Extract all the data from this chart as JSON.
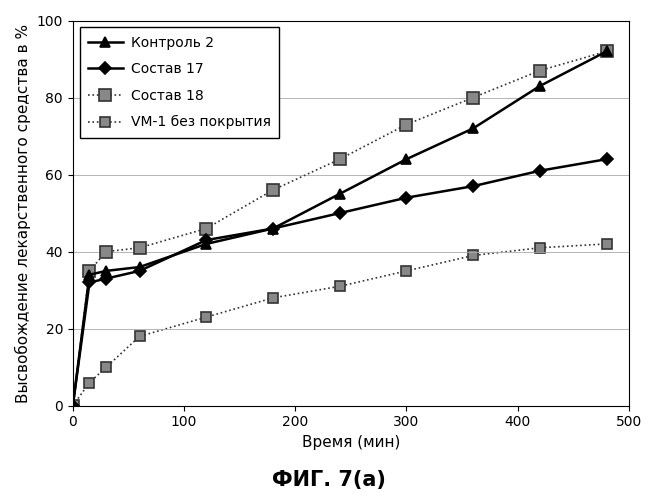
{
  "title": "ФИГ. 7(а)",
  "xlabel": "Время (мин)",
  "ylabel": "Высвобождение лекарственного средства в %",
  "xlim": [
    0,
    500
  ],
  "ylim": [
    0,
    100
  ],
  "xticks": [
    0,
    100,
    200,
    300,
    400,
    500
  ],
  "yticks": [
    0,
    20,
    40,
    60,
    80,
    100
  ],
  "series": [
    {
      "label": "Контроль 2",
      "color": "#000000",
      "marker": "^",
      "markersize": 7,
      "linewidth": 1.8,
      "linestyle": "-",
      "mfc": "#000000",
      "mec": "#000000",
      "x": [
        0,
        15,
        30,
        60,
        120,
        180,
        240,
        300,
        360,
        420,
        480
      ],
      "y": [
        0,
        34,
        35,
        36,
        42,
        46,
        55,
        64,
        72,
        83,
        92
      ]
    },
    {
      "label": "Состав 17",
      "color": "#000000",
      "marker": "D",
      "markersize": 6,
      "linewidth": 1.8,
      "linestyle": "-",
      "mfc": "#000000",
      "mec": "#000000",
      "x": [
        0,
        15,
        30,
        60,
        120,
        180,
        240,
        300,
        360,
        420,
        480
      ],
      "y": [
        0,
        32,
        33,
        35,
        43,
        46,
        50,
        54,
        57,
        61,
        64
      ]
    },
    {
      "label": "Состав 18",
      "color": "#333333",
      "marker": "s",
      "markersize": 8,
      "linewidth": 1.2,
      "linestyle": ":",
      "mfc": "#888888",
      "mec": "#333333",
      "x": [
        0,
        15,
        30,
        60,
        120,
        180,
        240,
        300,
        360,
        420,
        480
      ],
      "y": [
        0,
        35,
        40,
        41,
        46,
        56,
        64,
        73,
        80,
        87,
        92
      ]
    },
    {
      "label": "VM-1 без покрытия",
      "color": "#333333",
      "marker": "s",
      "markersize": 7,
      "linewidth": 1.2,
      "linestyle": ":",
      "mfc": "#888888",
      "mec": "#333333",
      "x": [
        0,
        15,
        30,
        60,
        120,
        180,
        240,
        300,
        360,
        420,
        480
      ],
      "y": [
        0,
        6,
        10,
        18,
        23,
        28,
        31,
        35,
        39,
        41,
        42
      ]
    }
  ],
  "legend_fontsize": 10,
  "axis_fontsize": 11,
  "tick_fontsize": 10,
  "title_fontsize": 15
}
